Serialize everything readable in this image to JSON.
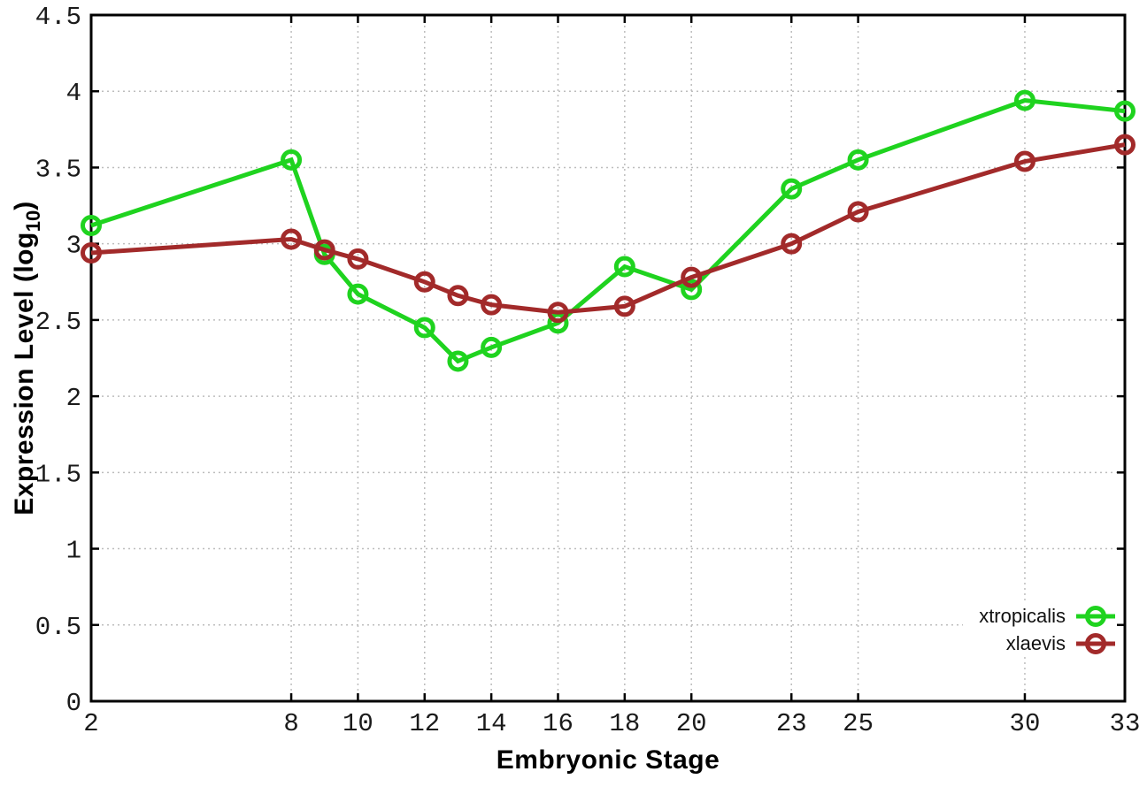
{
  "chart_data": {
    "type": "line",
    "title": "",
    "x_label": "Embryonic Stage",
    "y_label_main": "Expression Level (log",
    "y_label_sub": "10",
    "y_label_close": ")",
    "xlim": [
      2,
      33
    ],
    "ylim": [
      0,
      4.5
    ],
    "x_ticks": [
      2,
      8,
      10,
      12,
      14,
      16,
      18,
      20,
      23,
      25,
      30,
      33
    ],
    "y_ticks": [
      0,
      0.5,
      1,
      1.5,
      2,
      2.5,
      3,
      3.5,
      4,
      4.5
    ],
    "grid": true,
    "legend_position": "bottom-right-inside",
    "marker": "open-circle",
    "x": [
      2,
      8,
      9,
      10,
      12,
      13,
      14,
      16,
      18,
      20,
      23,
      25,
      30,
      33
    ],
    "series": [
      {
        "name": "xtropicalis",
        "color": "#1fd31f",
        "values": [
          3.12,
          3.55,
          2.93,
          2.67,
          2.45,
          2.23,
          2.32,
          2.48,
          2.85,
          2.7,
          3.36,
          3.55,
          3.94,
          3.87
        ]
      },
      {
        "name": "xlaevis",
        "color": "#a22a2a",
        "values": [
          2.94,
          3.03,
          2.96,
          2.9,
          2.75,
          2.66,
          2.6,
          2.55,
          2.59,
          2.78,
          3.0,
          3.21,
          3.54,
          3.65
        ]
      }
    ]
  }
}
